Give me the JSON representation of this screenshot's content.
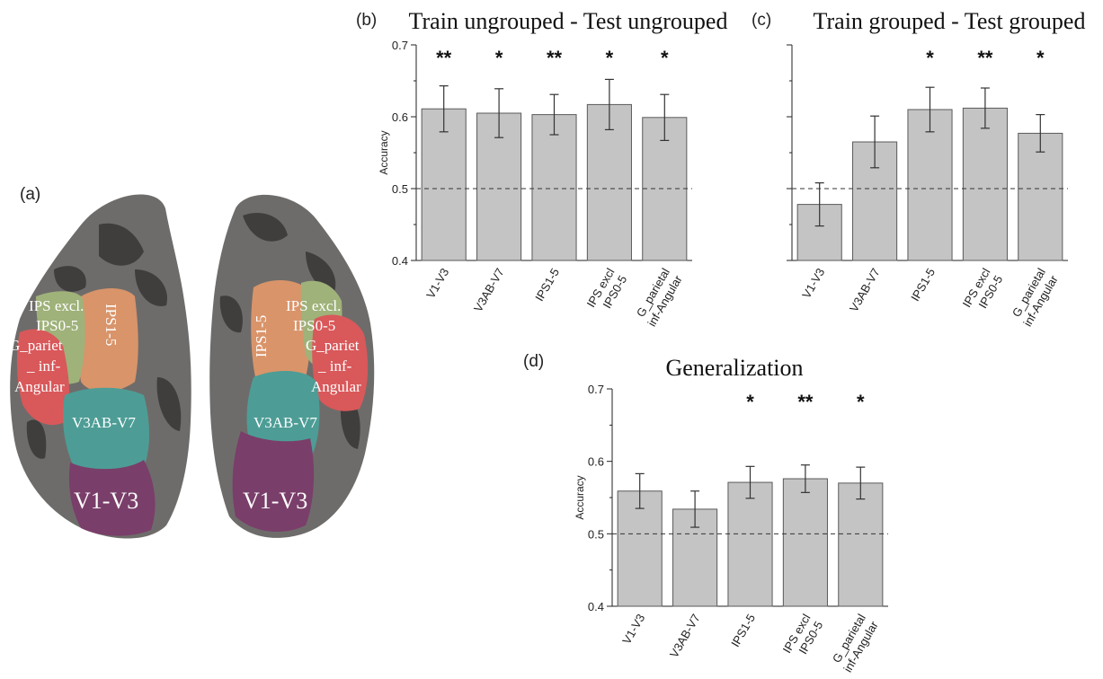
{
  "panels": {
    "a": "(a)",
    "b": "(b)",
    "c": "(c)",
    "d": "(d)"
  },
  "brain_labels": {
    "ips_excl": "IPS excl.",
    "ips0_5": "IPS0-5",
    "g_pariet": "G_pariet",
    "underscore_inf": "_ inf-",
    "angular": "Angular",
    "ips1_5": "IPS1-5",
    "v3ab_v7": "V3AB-V7",
    "v1_v3": "V1-V3"
  },
  "colors": {
    "bar_fill": "#c4c4c4",
    "bar_stroke": "#5a5a5a",
    "brain_gray": "#6e6c6a",
    "brain_dark": "#3f3e3d",
    "ips_excl_green": "#9fb27a",
    "ips1_5_orange": "#d9946a",
    "g_parietal_red": "#d9585a",
    "v3ab_teal": "#4d9d96",
    "v1_v3_purple": "#7a3e6a"
  },
  "chart_data": [
    {
      "id": "b",
      "type": "bar",
      "title": "Train ungrouped - Test ungrouped",
      "ylabel": "Accuracy",
      "ylim": [
        0.4,
        0.7
      ],
      "yticks": [
        "0.4",
        "0.5",
        "0.6",
        "0.7"
      ],
      "categories": [
        "V1-V3",
        "V3AB-V7",
        "IPS1-5",
        "IPS excl\nIPS0-5",
        "G_parietal\ninf-Angular"
      ],
      "values": [
        0.611,
        0.605,
        0.603,
        0.617,
        0.599
      ],
      "error": [
        0.032,
        0.034,
        0.028,
        0.035,
        0.032
      ],
      "significance": [
        "**",
        "*",
        "**",
        "*",
        "*"
      ],
      "chance_line": 0.5,
      "show_ylabel": true
    },
    {
      "id": "c",
      "type": "bar",
      "title": "Train grouped - Test grouped",
      "ylabel": "",
      "ylim": [
        0.4,
        0.7
      ],
      "yticks": [
        "",
        "",
        "",
        ""
      ],
      "categories": [
        "V1-V3",
        "V3AB-V7",
        "IPS1-5",
        "IPS excl\nIPS0-5",
        "G_parietal\ninf-Angular"
      ],
      "values": [
        0.478,
        0.565,
        0.61,
        0.612,
        0.577
      ],
      "error": [
        0.03,
        0.036,
        0.031,
        0.028,
        0.026
      ],
      "significance": [
        "",
        "",
        "*",
        "**",
        "*"
      ],
      "chance_line": 0.5,
      "show_ylabel": false
    },
    {
      "id": "d",
      "type": "bar",
      "title": "Generalization",
      "ylabel": "Accuracy",
      "ylim": [
        0.4,
        0.7
      ],
      "yticks": [
        "0.4",
        "0.5",
        "0.6",
        "0.7"
      ],
      "categories": [
        "V1-V3",
        "V3AB-V7",
        "IPS1-5",
        "IPS excl\nIPS0-5",
        "G_parietal\ninf-Angular"
      ],
      "values": [
        0.559,
        0.534,
        0.571,
        0.576,
        0.57
      ],
      "error": [
        0.024,
        0.025,
        0.022,
        0.019,
        0.022
      ],
      "significance": [
        "",
        "",
        "*",
        "**",
        "*"
      ],
      "chance_line": 0.5,
      "show_ylabel": true
    }
  ]
}
